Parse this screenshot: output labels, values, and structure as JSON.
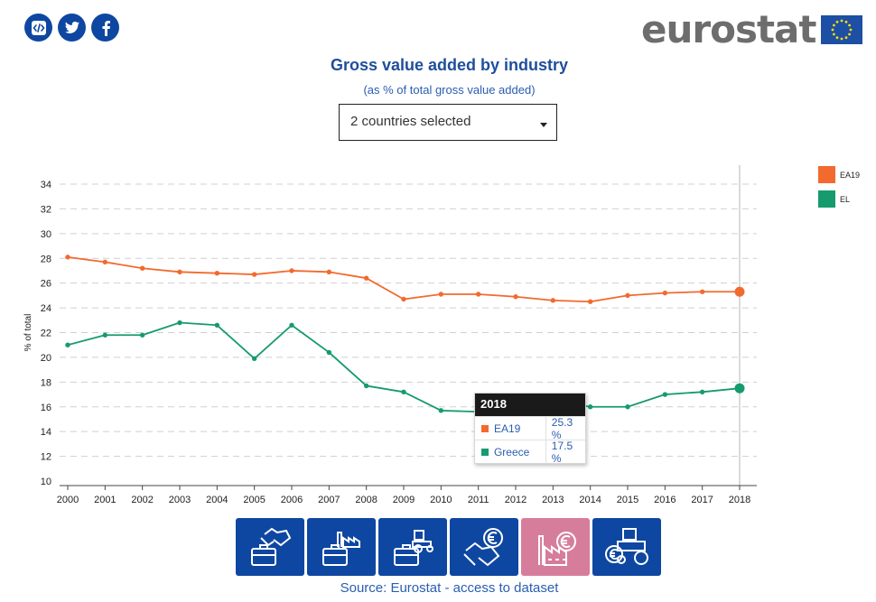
{
  "share": [
    {
      "icon": "embed-icon"
    },
    {
      "icon": "twitter-icon"
    },
    {
      "icon": "facebook-icon"
    }
  ],
  "logo": {
    "text": "eurostat"
  },
  "header": {
    "title": "Gross value added by industry",
    "subtitle": "(as % of total gross value added)"
  },
  "country_select": {
    "value": "2 countries selected"
  },
  "chart_data": {
    "type": "line",
    "title": "Gross value added by industry",
    "subtitle": "(as % of total gross value added)",
    "xlabel": "",
    "ylabel": "% of total",
    "x": [
      2000,
      2001,
      2002,
      2003,
      2004,
      2005,
      2006,
      2007,
      2008,
      2009,
      2010,
      2011,
      2012,
      2013,
      2014,
      2015,
      2016,
      2017,
      2018
    ],
    "ylim": [
      10,
      34
    ],
    "yticks": [
      10,
      12,
      14,
      16,
      18,
      20,
      22,
      24,
      26,
      28,
      30,
      32,
      34
    ],
    "grid": "horizontal dashed",
    "legend_position": "right",
    "highlight_year": 2018,
    "series": [
      {
        "name": "EA19",
        "color": "#f26a2e",
        "values": [
          28.1,
          27.7,
          27.2,
          26.9,
          26.8,
          26.7,
          27.0,
          26.9,
          26.4,
          24.7,
          25.1,
          25.1,
          24.9,
          24.6,
          24.5,
          25.0,
          25.2,
          25.3,
          25.3
        ]
      },
      {
        "name": "EL",
        "color": "#169b6e",
        "values": [
          21.0,
          21.8,
          21.8,
          22.8,
          22.6,
          19.9,
          22.6,
          20.4,
          17.7,
          17.2,
          15.7,
          15.6,
          16.1,
          16.5,
          16.0,
          16.0,
          17.0,
          17.2,
          17.5
        ]
      }
    ]
  },
  "legend": [
    {
      "label": "EA19",
      "color": "#f26a2e"
    },
    {
      "label": "EL",
      "color": "#169b6e"
    }
  ],
  "tooltip": {
    "year": "2018",
    "rows": [
      {
        "name": "EA19",
        "value": "25.3 %",
        "color": "#f26a2e"
      },
      {
        "name": "Greece",
        "value": "17.5 %",
        "color": "#169b6e"
      }
    ]
  },
  "industries": [
    {
      "icon": "services-briefcase-icon",
      "active": false
    },
    {
      "icon": "industry-briefcase-icon",
      "active": false
    },
    {
      "icon": "agriculture-briefcase-icon",
      "active": false
    },
    {
      "icon": "services-euro-icon",
      "active": false
    },
    {
      "icon": "industry-euro-icon",
      "active": true
    },
    {
      "icon": "agriculture-euro-icon",
      "active": false
    }
  ],
  "source": {
    "prefix": "Source: Eurostat - ",
    "link": "access to dataset"
  }
}
